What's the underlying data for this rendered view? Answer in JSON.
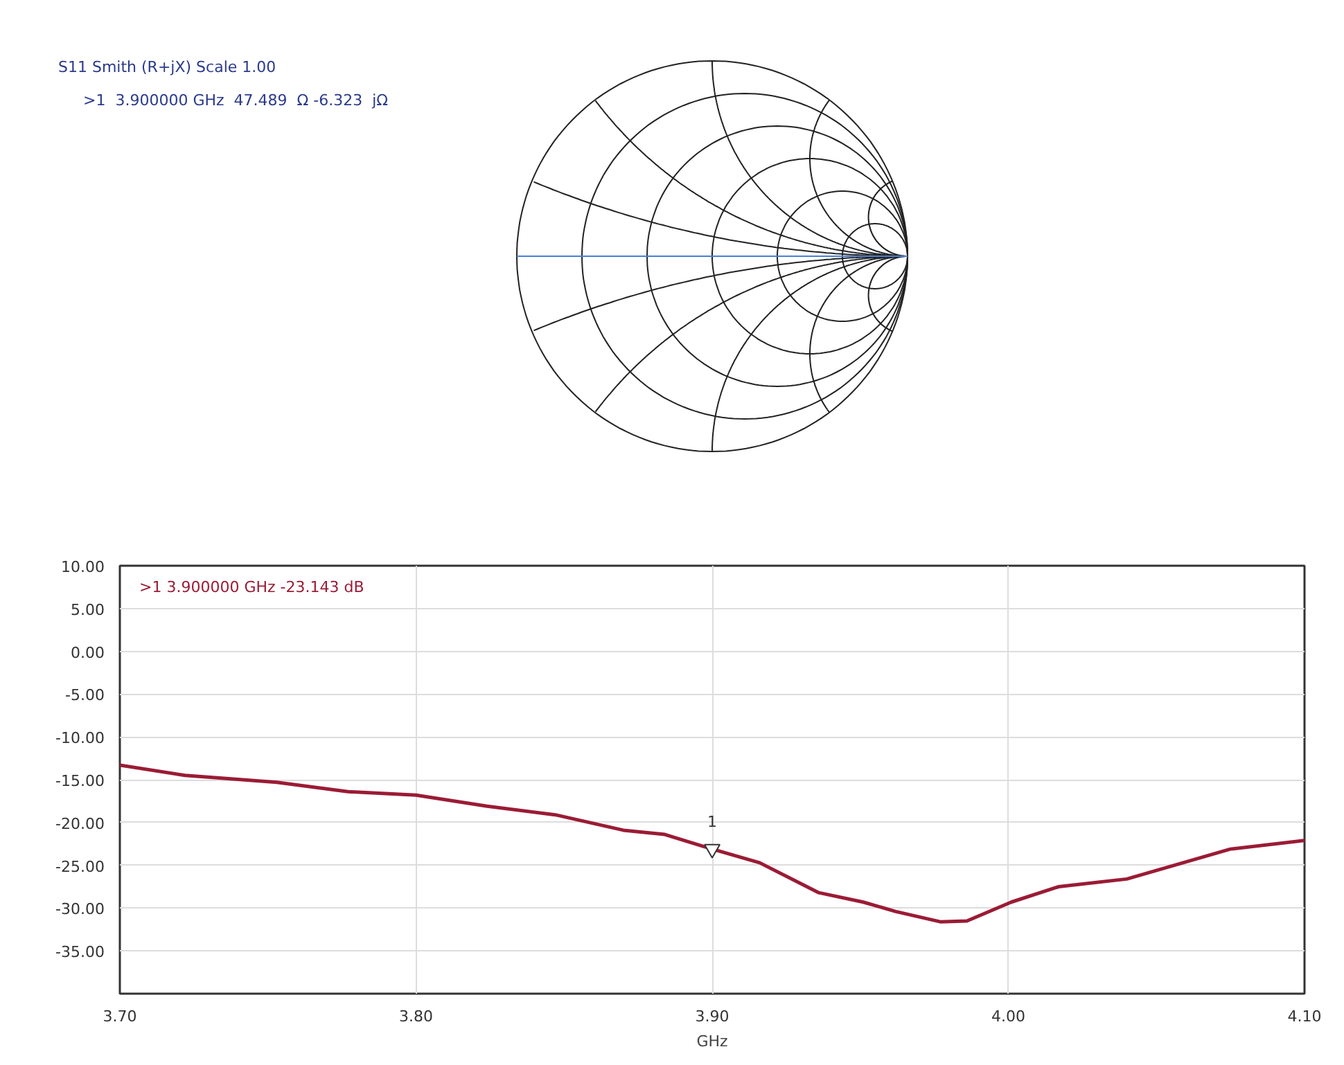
{
  "chart_data": [
    {
      "type": "other",
      "title": "S11 Smith (R+jX) Scale 1.00",
      "annotations": [
        ">1  3.900000 GHz  47.489  Ω -6.323  jΩ"
      ]
    },
    {
      "type": "line",
      "xlabel": "GHz",
      "xlim": [
        3.7,
        4.1
      ],
      "ylim": [
        -40,
        10
      ],
      "xticks": [
        {
          "value": 3.7,
          "label": "3.70"
        },
        {
          "value": 3.8,
          "label": "3.80"
        },
        {
          "value": 3.9,
          "label": "3.90"
        },
        {
          "value": 4.0,
          "label": "4.00"
        },
        {
          "value": 4.1,
          "label": "4.10"
        }
      ],
      "yticks": [
        {
          "value": 10,
          "label": "10.00"
        },
        {
          "value": 5,
          "label": "5.00"
        },
        {
          "value": 0,
          "label": "0.00"
        },
        {
          "value": -5,
          "label": "-5.00"
        },
        {
          "value": -10,
          "label": "-10.00"
        },
        {
          "value": -15,
          "label": "-15.00"
        },
        {
          "value": -20,
          "label": "-20.00"
        },
        {
          "value": -25,
          "label": "-25.00"
        },
        {
          "value": -30,
          "label": "-30.00"
        },
        {
          "value": -35,
          "label": "-35.00"
        }
      ],
      "grid": true,
      "series": [
        {
          "color": "#9b1b35",
          "x": [
            3.7,
            3.722,
            3.753,
            3.777,
            3.8,
            3.824,
            3.847,
            3.87,
            3.884,
            3.9,
            3.916,
            3.936,
            3.951,
            3.962,
            3.977,
            3.986,
            4.001,
            4.017,
            4.04,
            4.056,
            4.075,
            4.1
          ],
          "values": [
            -13.3,
            -14.5,
            -15.3,
            -16.4,
            -16.8,
            -18.1,
            -19.1,
            -20.9,
            -21.4,
            -23.1,
            -24.7,
            -28.2,
            -29.3,
            -30.4,
            -31.6,
            -31.5,
            -29.3,
            -27.5,
            -26.6,
            -25.0,
            -23.1,
            -22.1
          ]
        }
      ],
      "annotations": [
        ">1  3.900000 GHz  -23.143 dB",
        {
          "text": "1",
          "x": 3.9,
          "y": -23.1
        }
      ]
    }
  ]
}
